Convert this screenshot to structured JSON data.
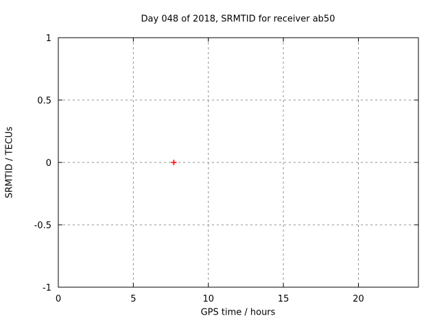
{
  "page": {
    "background": "#ffffff"
  },
  "chart_data": {
    "type": "scatter",
    "title": "Day 048 of 2018, SRMTID for receiver ab50",
    "xlabel": "GPS time / hours",
    "ylabel": "SRMTID / TECUs",
    "xlim": [
      0,
      24
    ],
    "ylim": [
      -1,
      1
    ],
    "xticks": {
      "values": [
        0,
        5,
        10,
        15,
        20
      ],
      "labels": [
        "0",
        "5",
        "10",
        "15",
        "20"
      ]
    },
    "yticks": {
      "values": [
        -1,
        -0.5,
        0,
        0.5,
        1
      ],
      "labels": [
        "-1",
        "-0.5",
        "0",
        "0.5",
        "1"
      ]
    },
    "grid": true,
    "grid_style": "dashed",
    "grid_color": "#8c8c8c",
    "axis_color": "#000000",
    "background": "#ffffff",
    "legend": "none",
    "series": [
      {
        "name": "SRMTID",
        "marker": "plus",
        "color": "#ff0000",
        "points": [
          {
            "x": 7.7,
            "y": 0.0
          }
        ]
      }
    ]
  }
}
